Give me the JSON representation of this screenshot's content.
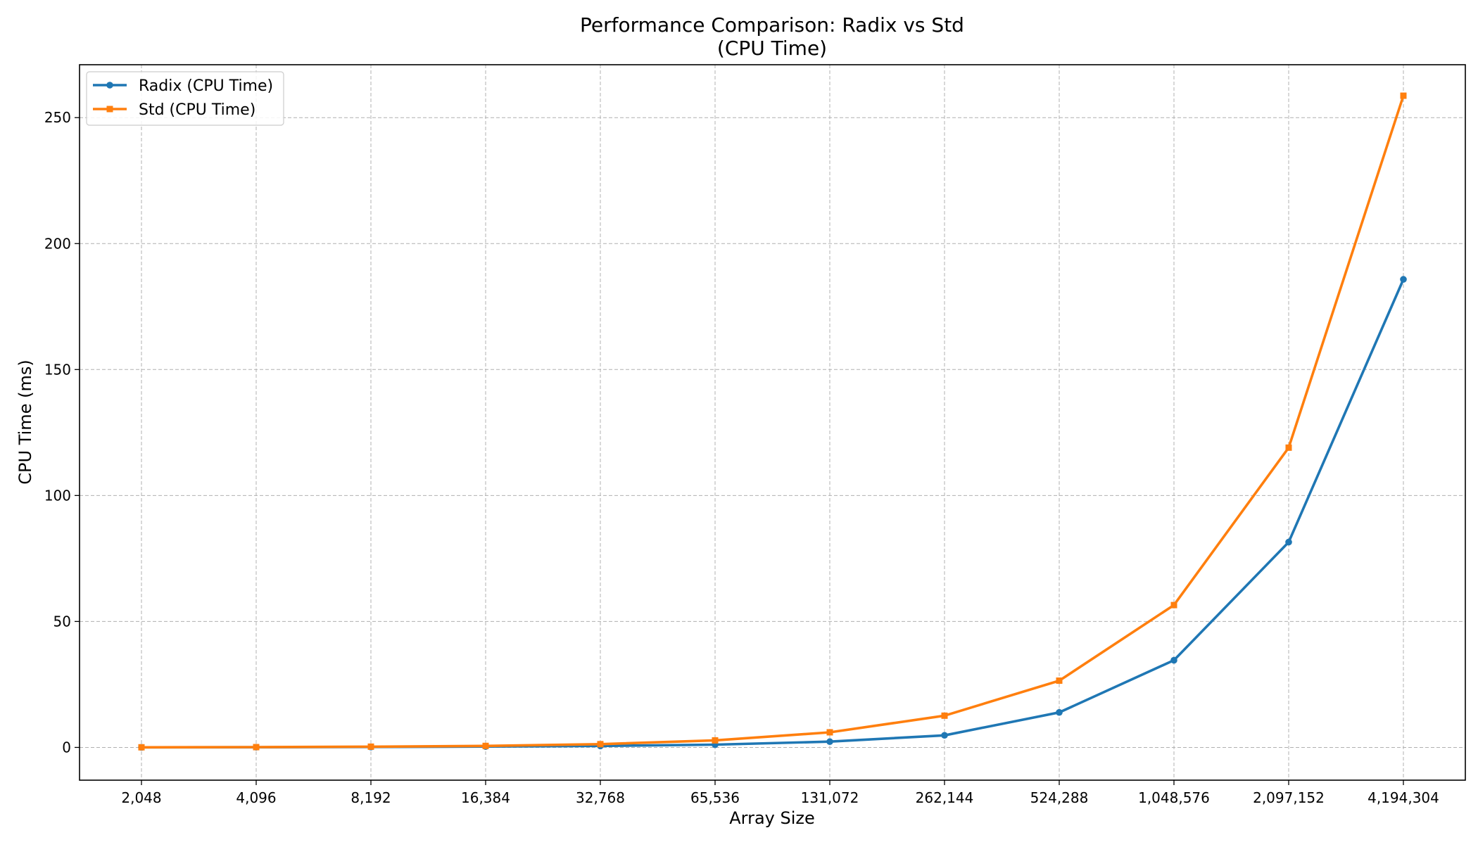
{
  "chart_data": {
    "type": "line",
    "title": "Performance Comparison: Radix vs Std",
    "subtitle": "(CPU Time)",
    "xlabel": "Array Size",
    "ylabel": "CPU Time (ms)",
    "x_tick_labels": [
      "2,048",
      "4,096",
      "8,192",
      "16,384",
      "32,768",
      "65,536",
      "131,072",
      "262,144",
      "524,288",
      "1,048,576",
      "2,097,152",
      "4,194,304"
    ],
    "x": [
      2048,
      4096,
      8192,
      16384,
      32768,
      65536,
      131072,
      262144,
      524288,
      1048576,
      2097152,
      4194304
    ],
    "ylim": [
      -13,
      271
    ],
    "y_ticks": [
      0,
      50,
      100,
      150,
      200,
      250
    ],
    "grid": true,
    "legend_position": "top-left",
    "series": [
      {
        "name": "Radix (CPU Time)",
        "color": "#1f77b4",
        "marker": "circle",
        "values": [
          0.04,
          0.08,
          0.17,
          0.34,
          0.6,
          1.1,
          2.3,
          4.8,
          13.9,
          34.6,
          81.5,
          185.8
        ]
      },
      {
        "name": "Std (CPU Time)",
        "color": "#ff7f0e",
        "marker": "square",
        "values": [
          0.05,
          0.12,
          0.3,
          0.6,
          1.3,
          2.8,
          6.0,
          12.6,
          26.5,
          56.5,
          119.0,
          258.7
        ]
      }
    ]
  }
}
